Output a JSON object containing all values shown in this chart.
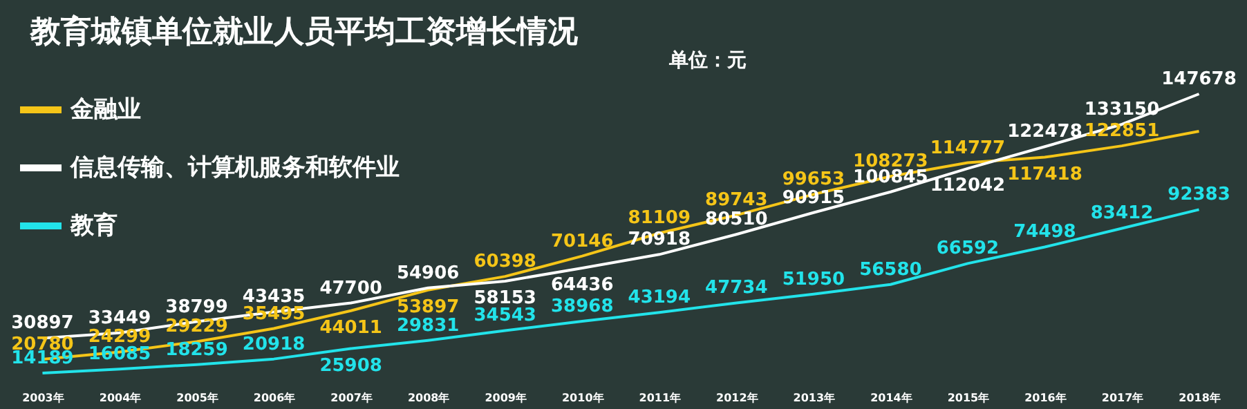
{
  "chart_data": {
    "type": "line",
    "title": "教育城镇单位就业人员平均工资增长情况",
    "annotations": [
      "单位：元"
    ],
    "categories": [
      "2003年",
      "2004年",
      "2005年",
      "2006年",
      "2007年",
      "2008年",
      "2009年",
      "2010年",
      "2011年",
      "2012年",
      "2013年",
      "2014年",
      "2015年",
      "2016年",
      "2017年",
      "2018年"
    ],
    "series": [
      {
        "name": "金融业",
        "color": "#f5c518",
        "values": [
          20780,
          24299,
          29229,
          35495,
          44011,
          53897,
          60398,
          70146,
          81109,
          89743,
          99653,
          108273,
          114777,
          117418,
          122851,
          129837
        ],
        "value_labels": [
          "20780",
          "24299",
          "29229",
          "35495",
          "44011",
          "53897",
          "60398",
          "70146",
          "81109",
          "89743",
          "99653",
          "108273",
          "114777",
          "117418",
          "122851",
          null
        ]
      },
      {
        "name": "信息传输、计算机服务和软件业",
        "color": "#ffffff",
        "values": [
          30897,
          33449,
          38799,
          43435,
          47700,
          54906,
          58153,
          64436,
          70918,
          80510,
          90915,
          100845,
          112042,
          122478,
          133150,
          147678
        ]
      },
      {
        "name": "教育",
        "color": "#22e3ea",
        "values": [
          14189,
          16085,
          18259,
          20918,
          25908,
          29831,
          34543,
          38968,
          43194,
          47734,
          51950,
          56580,
          66592,
          74498,
          83412,
          92383
        ]
      }
    ],
    "data_labels": true,
    "legend": "top left",
    "grid": false,
    "marker": "none",
    "line_style": "solid"
  }
}
